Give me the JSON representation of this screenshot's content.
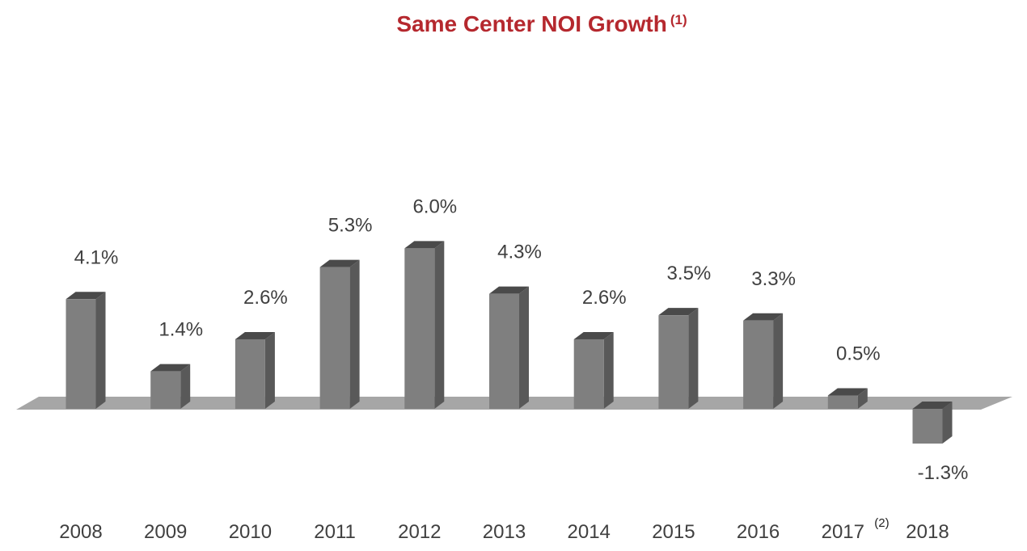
{
  "chart_data": {
    "type": "bar",
    "title": "Same Center NOI Growth",
    "title_footnote": "(1)",
    "categories": [
      "2008",
      "2009",
      "2010",
      "2011",
      "2012",
      "2013",
      "2014",
      "2015",
      "2016",
      "2017",
      "2018"
    ],
    "category_footnotes": {
      "2017": "(2)"
    },
    "values": [
      4.1,
      1.4,
      2.6,
      5.3,
      6.0,
      4.3,
      2.6,
      3.5,
      3.3,
      0.5,
      -1.3
    ],
    "value_labels": [
      "4.1%",
      "1.4%",
      "2.6%",
      "5.3%",
      "6.0%",
      "4.3%",
      "2.6%",
      "3.5%",
      "3.3%",
      "0.5%",
      "-1.3%"
    ],
    "unit": "%",
    "xlabel": "",
    "ylabel": "",
    "ylim": [
      -1.3,
      6.0
    ],
    "grid": false,
    "legend": "none",
    "style": "3d-column",
    "colors": {
      "title": "#b5282e",
      "bar_front": "#7f7f7f",
      "bar_side": "#595959",
      "bar_top": "#4a4a4a",
      "floor": "#a6a6a6",
      "text": "#404040"
    }
  }
}
